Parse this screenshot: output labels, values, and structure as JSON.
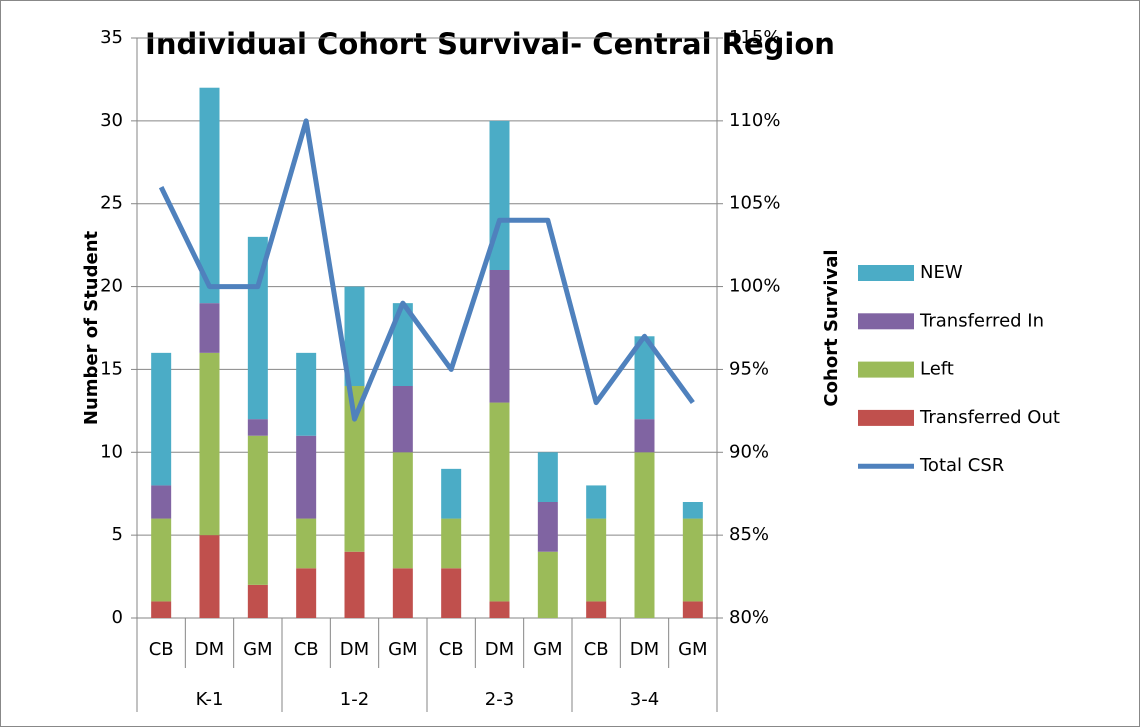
{
  "chart_data": {
    "type": "bar",
    "title": "Individual Cohort Survival- Central Region",
    "y_label": "Number of Student",
    "y2_label": "Cohort Survival",
    "categories": [
      "CB",
      "DM",
      "GM",
      "CB",
      "DM",
      "GM",
      "CB",
      "DM",
      "GM",
      "CB",
      "DM",
      "GM"
    ],
    "category_groups": [
      "K-1",
      "1-2",
      "2-3",
      "3-4"
    ],
    "series": [
      {
        "name": "Transferred Out",
        "color": "#c0504d",
        "type": "bar",
        "values": [
          1,
          5,
          2,
          3,
          4,
          3,
          3,
          1,
          0,
          1,
          0,
          1
        ]
      },
      {
        "name": "Left",
        "color": "#9bbb59",
        "type": "bar",
        "values": [
          5,
          11,
          9,
          3,
          10,
          7,
          3,
          12,
          4,
          5,
          10,
          5
        ]
      },
      {
        "name": "Transferred In",
        "color": "#8064a2",
        "type": "bar",
        "values": [
          2,
          3,
          1,
          5,
          0,
          4,
          0,
          8,
          3,
          0,
          2,
          0
        ]
      },
      {
        "name": "NEW",
        "color": "#4bacc6",
        "type": "bar",
        "values": [
          8,
          13,
          11,
          5,
          6,
          5,
          3,
          9,
          3,
          2,
          5,
          1
        ]
      },
      {
        "name": "Total CSR",
        "color": "#4f81bd",
        "type": "line",
        "axis": "y2",
        "values": [
          106,
          100,
          100,
          110,
          92,
          99,
          95,
          104,
          104,
          93,
          97,
          93
        ]
      }
    ],
    "ylim": [
      0,
      35
    ],
    "yticks": [
      0,
      5,
      10,
      15,
      20,
      25,
      30,
      35
    ],
    "y2lim": [
      80,
      115
    ],
    "y2ticks": [
      {
        "value": 80,
        "label": "80%"
      },
      {
        "value": 85,
        "label": "85%"
      },
      {
        "value": 90,
        "label": "90%"
      },
      {
        "value": 95,
        "label": "95%"
      },
      {
        "value": 100,
        "label": "100%"
      },
      {
        "value": 105,
        "label": "105%"
      },
      {
        "value": 110,
        "label": "110%"
      },
      {
        "value": 115,
        "label": "115%"
      }
    ],
    "grid": true,
    "stacked": true,
    "legend": "right"
  }
}
